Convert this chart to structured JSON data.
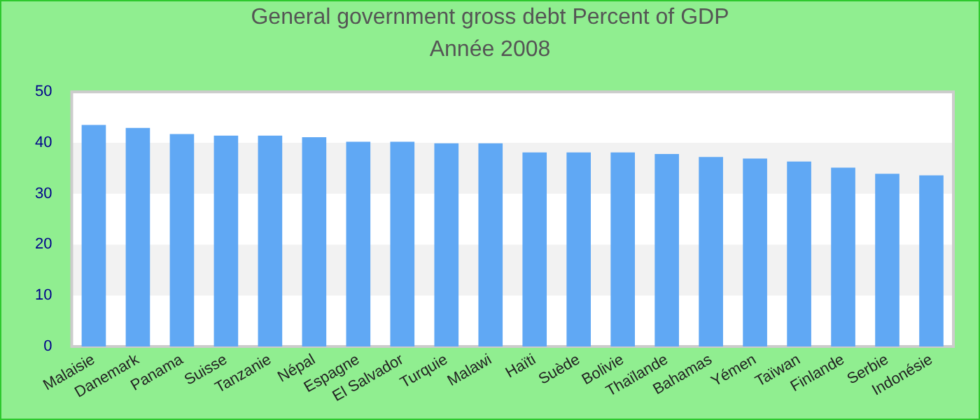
{
  "chart_data": {
    "type": "bar",
    "title": "General government gross debt  Percent of GDP",
    "subtitle": "Année 2008",
    "categories": [
      "Malaisie",
      "Danemark",
      "Panama",
      "Suisse",
      "Tanzanie",
      "Népal",
      "Espagne",
      "El Salvador",
      "Turquie",
      "Malawi",
      "Haïti",
      "Suède",
      "Bolivie",
      "Thaïlande",
      "Bahamas",
      "Yémen",
      "Taïwan",
      "Finlande",
      "Serbie",
      "Indonésie"
    ],
    "values": [
      43.5,
      42.9,
      41.7,
      41.4,
      41.4,
      41.1,
      40.2,
      40.2,
      39.9,
      39.9,
      38.1,
      38.1,
      38.1,
      37.8,
      37.2,
      36.9,
      36.3,
      35.1,
      33.9,
      33.6
    ],
    "color": "#60a8f4",
    "ylim": [
      0,
      50
    ],
    "yticks": [
      0,
      10,
      20,
      30,
      40,
      50
    ],
    "grid": false,
    "legend": false
  }
}
